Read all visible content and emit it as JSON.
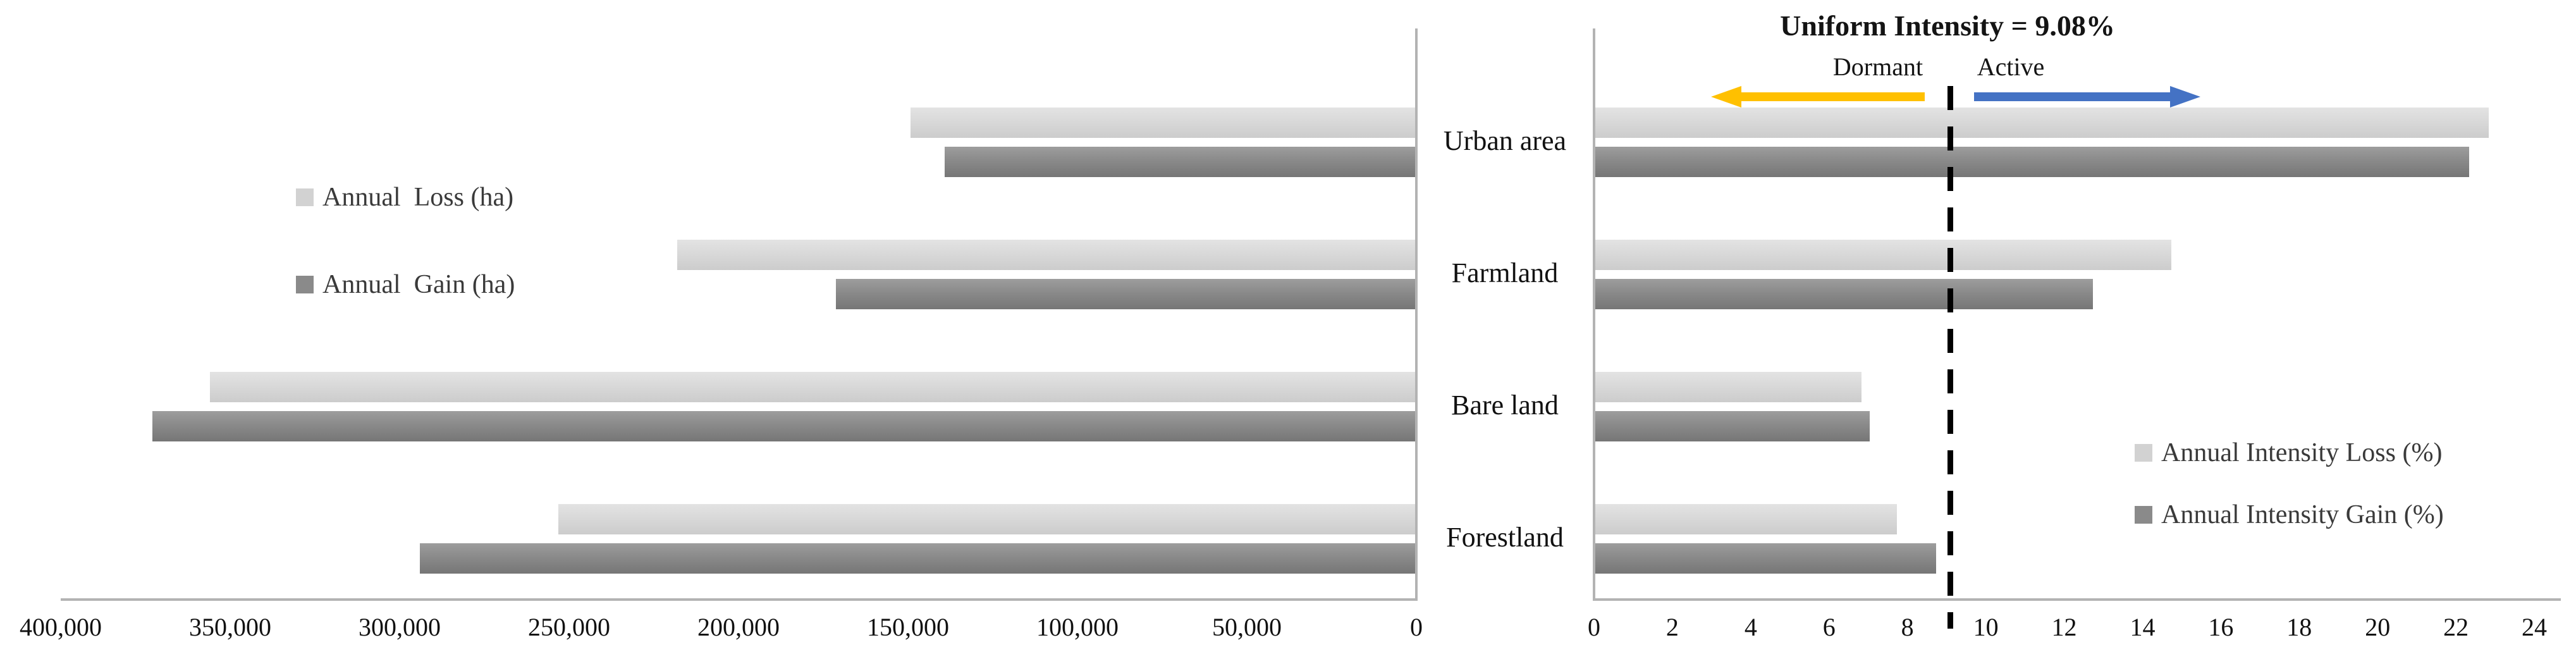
{
  "header": {
    "uniform_intensity_label": "Uniform Intensity = 9.08%",
    "dormant_label": "Dormant",
    "active_label": "Active"
  },
  "colors": {
    "loss_bar": "#d9d9d9",
    "gain_bar": "#8a8a8a",
    "dormant_arrow": "#FFC000",
    "active_arrow": "#4472C4",
    "uniform_line": "#000000",
    "axis_line": "#b3b3b3"
  },
  "chart_data": [
    {
      "id": "annual-area-change",
      "type": "bar",
      "orientation": "horizontal, bars grow right-to-left",
      "categories": [
        "Urban area",
        "Farmland",
        "Bare land",
        "Forestland"
      ],
      "series": [
        {
          "name": "Annual  Loss (ha)",
          "color_key": "loss",
          "values": [
            149000,
            218000,
            356000,
            253000
          ]
        },
        {
          "name": "Annual  Gain (ha)",
          "color_key": "gain",
          "values": [
            139000,
            171000,
            373000,
            294000
          ]
        }
      ],
      "xlim": [
        400000,
        0
      ],
      "x_ticks": [
        "400,000",
        "350,000",
        "300,000",
        "250,000",
        "200,000",
        "150,000",
        "100,000",
        "50,000",
        "0"
      ],
      "grid": false,
      "legend_position": "inside upper-left"
    },
    {
      "id": "annual-intensity",
      "type": "bar",
      "orientation": "horizontal, bars grow left-to-right",
      "categories": [
        "Urban area",
        "Farmland",
        "Bare land",
        "Forestland"
      ],
      "series": [
        {
          "name": "Annual Intensity Loss (%)",
          "color_key": "loss",
          "values": [
            22.8,
            14.7,
            6.8,
            7.7
          ]
        },
        {
          "name": "Annual Intensity Gain (%)",
          "color_key": "gain",
          "values": [
            22.3,
            12.7,
            7.0,
            8.7
          ]
        }
      ],
      "xlim": [
        0,
        24
      ],
      "x_ticks": [
        "0",
        "2",
        "4",
        "6",
        "8",
        "10",
        "12",
        "14",
        "16",
        "18",
        "20",
        "22",
        "24"
      ],
      "grid": false,
      "uniform_intensity_pct": 9.08,
      "annotations": {
        "uniform_line": "dashed vertical line at 9.08%",
        "dormant_zone": "left of uniform line",
        "active_zone": "right of uniform line"
      },
      "legend_position": "inside lower-right"
    }
  ]
}
